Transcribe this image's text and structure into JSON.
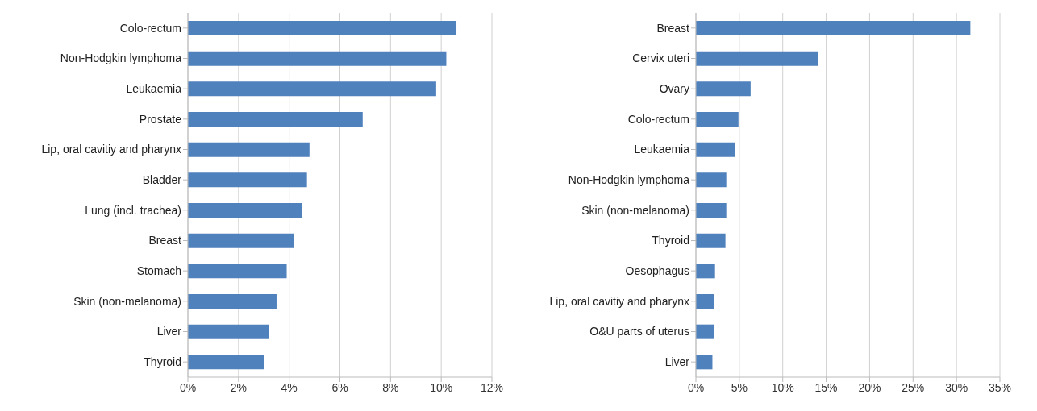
{
  "chart_data": [
    {
      "type": "bar",
      "orientation": "horizontal",
      "categories": [
        "Colo-rectum",
        "Non-Hodgkin lymphoma",
        "Leukaemia",
        "Prostate",
        "Lip, oral cavitiy and pharynx",
        "Bladder",
        "Lung (incl. trachea)",
        "Breast",
        "Stomach",
        "Skin (non-melanoma)",
        "Liver",
        "Thyroid"
      ],
      "values": [
        10.6,
        10.2,
        9.8,
        6.9,
        4.8,
        4.7,
        4.5,
        4.2,
        3.9,
        3.5,
        3.2,
        3.0
      ],
      "color": "#4f81bd",
      "xlim": [
        0,
        12
      ],
      "xticks": [
        {
          "value": 0,
          "label": "0%"
        },
        {
          "value": 2,
          "label": "2%"
        },
        {
          "value": 4,
          "label": "4%"
        },
        {
          "value": 6,
          "label": "6%"
        },
        {
          "value": 8,
          "label": "8%"
        },
        {
          "value": 10,
          "label": "10%"
        },
        {
          "value": 12,
          "label": "12%"
        }
      ],
      "grid": "x"
    },
    {
      "type": "bar",
      "orientation": "horizontal",
      "categories": [
        "Breast",
        "Cervix uteri",
        "Ovary",
        "Colo-rectum",
        "Leukaemia",
        "Non-Hodgkin lymphoma",
        "Skin (non-melanoma)",
        "Thyroid",
        "Oesophagus",
        "Lip, oral cavitiy and pharynx",
        "O&U parts of uterus",
        "Liver"
      ],
      "values": [
        31.6,
        14.1,
        6.3,
        4.9,
        4.5,
        3.5,
        3.5,
        3.4,
        2.2,
        2.1,
        2.1,
        1.9
      ],
      "color": "#4f81bd",
      "xlim": [
        0,
        35
      ],
      "xticks": [
        {
          "value": 0,
          "label": "0%"
        },
        {
          "value": 5,
          "label": "5%"
        },
        {
          "value": 10,
          "label": "10%"
        },
        {
          "value": 15,
          "label": "15%"
        },
        {
          "value": 20,
          "label": "20%"
        },
        {
          "value": 25,
          "label": "25%"
        },
        {
          "value": 30,
          "label": "30%"
        },
        {
          "value": 35,
          "label": "35%"
        }
      ],
      "grid": "x"
    }
  ]
}
